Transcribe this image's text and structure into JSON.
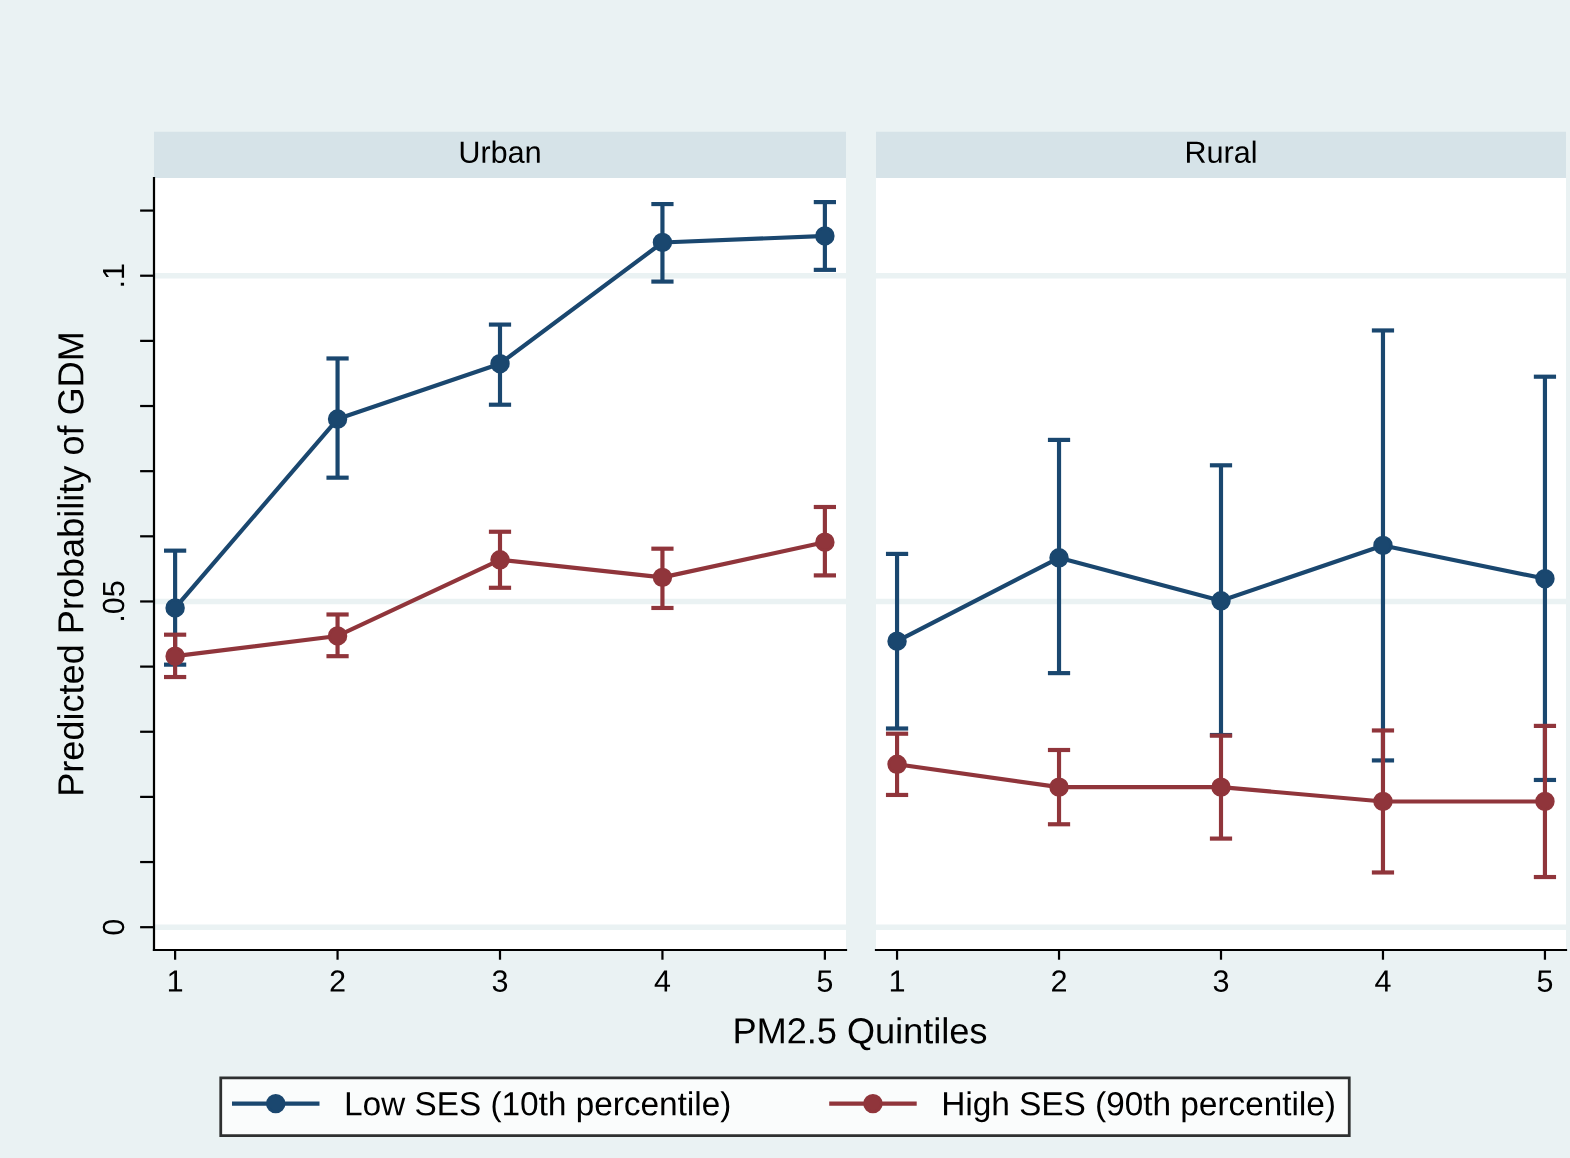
{
  "chart_data": [
    {
      "type": "line",
      "title": "Urban",
      "xlabel": "PM2.5 Quintiles",
      "ylabel": "Predicted Probability of GDM",
      "x": [
        1,
        2,
        3,
        4,
        5
      ],
      "xlim": [
        0.87,
        5.13
      ],
      "xticks": [
        1,
        2,
        3,
        4,
        5
      ],
      "ylim": [
        -0.0035,
        0.115
      ],
      "yticks": [
        {
          "value": 0,
          "label": "0"
        },
        {
          "value": 0.01,
          "label": null
        },
        {
          "value": 0.02,
          "label": null
        },
        {
          "value": 0.03,
          "label": null
        },
        {
          "value": 0.04,
          "label": null
        },
        {
          "value": 0.05,
          "label": ".05"
        },
        {
          "value": 0.06,
          "label": null
        },
        {
          "value": 0.07,
          "label": null
        },
        {
          "value": 0.08,
          "label": null
        },
        {
          "value": 0.09,
          "label": null
        },
        {
          "value": 0.1,
          "label": ".1"
        },
        {
          "value": 0.11,
          "label": null
        }
      ],
      "grid": "y",
      "marker": "circle",
      "legend": "bottom",
      "series": [
        {
          "name": "Low SES (10th percentile)",
          "color": "#1a476f",
          "values": [
            0.049,
            0.078,
            0.0865,
            0.1051,
            0.1061
          ],
          "errors": [
            [
              0.0403,
              0.0578
            ],
            [
              0.069,
              0.0873
            ],
            [
              0.0802,
              0.0925
            ],
            [
              0.0991,
              0.111
            ],
            [
              0.1009,
              0.1113
            ]
          ]
        },
        {
          "name": "High SES (90th percentile)",
          "color": "#90353b",
          "values": [
            0.0416,
            0.0447,
            0.0564,
            0.0537,
            0.0591
          ],
          "errors": [
            [
              0.0384,
              0.0449
            ],
            [
              0.0416,
              0.048
            ],
            [
              0.0521,
              0.0607
            ],
            [
              0.049,
              0.0581
            ],
            [
              0.054,
              0.0645
            ]
          ]
        }
      ]
    },
    {
      "type": "line",
      "title": "Rural",
      "x": [
        1,
        2,
        3,
        4,
        5
      ],
      "xlim": [
        0.87,
        5.13
      ],
      "xticks": [
        1,
        2,
        3,
        4,
        5
      ],
      "ylim": [
        -0.0035,
        0.115
      ],
      "yticks": [
        {
          "value": 0,
          "label": null
        },
        {
          "value": 0.05,
          "label": null
        },
        {
          "value": 0.1,
          "label": null
        }
      ],
      "tick_labels": "x",
      "grid": "y",
      "marker": "circle",
      "series": [
        {
          "color": "#1a476f",
          "values": [
            0.0439,
            0.0567,
            0.0501,
            0.0586,
            0.0535
          ],
          "errors": [
            [
              0.0305,
              0.0573
            ],
            [
              0.039,
              0.0748
            ],
            [
              0.0295,
              0.0709
            ],
            [
              0.0256,
              0.0916
            ],
            [
              0.0226,
              0.0845
            ]
          ]
        },
        {
          "color": "#90353b",
          "values": [
            0.025,
            0.0215,
            0.0215,
            0.0193,
            0.0193
          ],
          "errors": [
            [
              0.0203,
              0.0297
            ],
            [
              0.0158,
              0.0272
            ],
            [
              0.0136,
              0.0294
            ],
            [
              0.0084,
              0.0302
            ],
            [
              0.0077,
              0.0309
            ]
          ]
        }
      ]
    }
  ]
}
